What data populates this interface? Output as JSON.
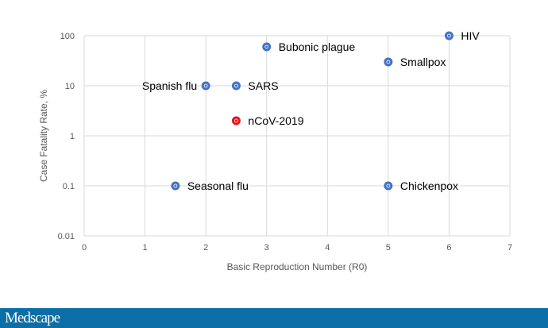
{
  "chart_data": {
    "type": "scatter",
    "title": "",
    "xlabel": "Basic Reproduction Number (R0)",
    "ylabel": "Case Fatality Rate, %",
    "xlim": [
      0,
      7
    ],
    "ylim": [
      0.01,
      100
    ],
    "yscale": "log",
    "grid": true,
    "xticks": [
      "0",
      "1",
      "2",
      "3",
      "4",
      "5",
      "6",
      "7"
    ],
    "yticks": [
      "0.01",
      "0.1",
      "1",
      "10",
      "100"
    ],
    "points": [
      {
        "label": "Bubonic plague",
        "x": 3,
        "y": 60,
        "color": "#4472c4"
      },
      {
        "label": "HIV",
        "x": 6,
        "y": 100,
        "color": "#4472c4"
      },
      {
        "label": "Smallpox",
        "x": 5,
        "y": 30,
        "color": "#4472c4"
      },
      {
        "label": "Spanish flu",
        "x": 2,
        "y": 10,
        "color": "#4472c4",
        "label_side": "left"
      },
      {
        "label": "SARS",
        "x": 2.5,
        "y": 10,
        "color": "#4472c4"
      },
      {
        "label": "nCoV-2019",
        "x": 2.5,
        "y": 2,
        "color": "#e8141c"
      },
      {
        "label": "Seasonal flu",
        "x": 1.5,
        "y": 0.1,
        "color": "#4472c4"
      },
      {
        "label": "Chickenpox",
        "x": 5,
        "y": 0.1,
        "color": "#4472c4"
      }
    ]
  },
  "footer": {
    "logo": "Medscape",
    "color": "#0b6ea6"
  }
}
